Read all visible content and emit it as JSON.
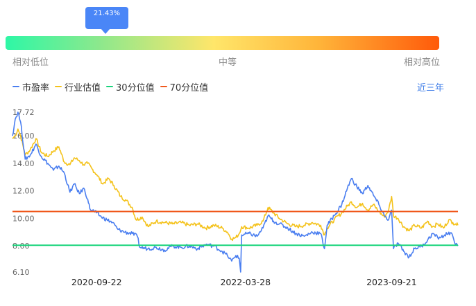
{
  "gauge": {
    "percentile_label": "21.43%",
    "percentile_value": 21.43,
    "labels": {
      "low": "相对低位",
      "mid": "中等",
      "high": "相对高位"
    }
  },
  "legend": {
    "items": [
      {
        "name": "市盈率",
        "color": "#4a7ef0"
      },
      {
        "name": "行业估值",
        "color": "#f4c21a"
      },
      {
        "name": "30分位值",
        "color": "#19d47b"
      },
      {
        "name": "70分位值",
        "color": "#f0581c"
      }
    ]
  },
  "range_selector": {
    "label": "近三年"
  },
  "chart_data": {
    "type": "line",
    "y_tick_labels": [
      "17.72",
      "16.00",
      "14.00",
      "12.00",
      "10.00",
      "8.00",
      "6.10"
    ],
    "y_ticks": [
      17.72,
      16.0,
      14.0,
      12.0,
      10.0,
      8.0,
      6.1
    ],
    "ylim": [
      6.1,
      17.72
    ],
    "x_tick_labels": [
      "2020-09-22",
      "2022-03-28",
      "2023-09-21"
    ],
    "x_range": [
      "2019-11-15",
      "2024-05-24"
    ],
    "reference_lines": [
      {
        "name": "30分位值",
        "value": 8.05,
        "color": "#19d47b"
      },
      {
        "name": "70分位值",
        "value": 10.5,
        "color": "#f0581c"
      }
    ],
    "series": [
      {
        "name": "市盈率",
        "color": "#4a7ef0",
        "points": [
          [
            "2019-11-15",
            16.0
          ],
          [
            "2019-11-25",
            17.2
          ],
          [
            "2019-12-05",
            17.72
          ],
          [
            "2019-12-15",
            17.0
          ],
          [
            "2020-01-01",
            14.3
          ],
          [
            "2020-01-20",
            14.6
          ],
          [
            "2020-02-10",
            15.4
          ],
          [
            "2020-03-01",
            14.5
          ],
          [
            "2020-03-25",
            14.0
          ],
          [
            "2020-04-15",
            13.5
          ],
          [
            "2020-05-05",
            13.8
          ],
          [
            "2020-05-25",
            13.3
          ],
          [
            "2020-06-15",
            11.9
          ],
          [
            "2020-07-01",
            12.5
          ],
          [
            "2020-07-20",
            11.8
          ],
          [
            "2020-08-05",
            12.2
          ],
          [
            "2020-08-20",
            11.4
          ],
          [
            "2020-08-28",
            10.7
          ],
          [
            "2020-09-22",
            10.4
          ],
          [
            "2020-10-10",
            10.1
          ],
          [
            "2020-10-30",
            9.9
          ],
          [
            "2020-11-20",
            9.7
          ],
          [
            "2020-12-10",
            9.2
          ],
          [
            "2021-01-05",
            9.0
          ],
          [
            "2021-02-01",
            8.9
          ],
          [
            "2021-02-20",
            8.7
          ],
          [
            "2021-03-01",
            7.9
          ],
          [
            "2021-04-01",
            7.8
          ],
          [
            "2021-05-01",
            7.9
          ],
          [
            "2021-06-01",
            7.7
          ],
          [
            "2021-07-01",
            8.0
          ],
          [
            "2021-08-01",
            7.9
          ],
          [
            "2021-09-01",
            8.0
          ],
          [
            "2021-10-01",
            7.8
          ],
          [
            "2021-11-01",
            8.1
          ],
          [
            "2021-12-01",
            8.0
          ],
          [
            "2022-01-01",
            7.6
          ],
          [
            "2022-01-20",
            7.3
          ],
          [
            "2022-02-05",
            6.9
          ],
          [
            "2022-02-20",
            7.3
          ],
          [
            "2022-03-05",
            7.1
          ],
          [
            "2022-03-10",
            6.1
          ],
          [
            "2022-03-14",
            8.8
          ],
          [
            "2022-04-10",
            8.9
          ],
          [
            "2022-05-10",
            8.7
          ],
          [
            "2022-06-01",
            9.3
          ],
          [
            "2022-06-20",
            10.2
          ],
          [
            "2022-07-10",
            9.8
          ],
          [
            "2022-08-01",
            9.6
          ],
          [
            "2022-09-01",
            9.3
          ],
          [
            "2022-10-01",
            8.9
          ],
          [
            "2022-11-01",
            8.7
          ],
          [
            "2022-12-01",
            9.0
          ],
          [
            "2023-01-01",
            8.9
          ],
          [
            "2023-01-15",
            7.8
          ],
          [
            "2023-01-25",
            9.5
          ],
          [
            "2023-02-20",
            10.2
          ],
          [
            "2023-03-20",
            11.0
          ],
          [
            "2023-04-10",
            12.2
          ],
          [
            "2023-04-25",
            12.9
          ],
          [
            "2023-05-15",
            12.3
          ],
          [
            "2023-06-05",
            11.8
          ],
          [
            "2023-06-25",
            12.4
          ],
          [
            "2023-07-15",
            11.7
          ],
          [
            "2023-08-05",
            11.0
          ],
          [
            "2023-08-25",
            10.2
          ],
          [
            "2023-09-10",
            9.9
          ],
          [
            "2023-09-21",
            10.6
          ],
          [
            "2023-09-28",
            7.8
          ],
          [
            "2023-10-15",
            8.2
          ],
          [
            "2023-11-05",
            7.6
          ],
          [
            "2023-11-25",
            7.2
          ],
          [
            "2023-12-15",
            7.8
          ],
          [
            "2024-01-10",
            8.0
          ],
          [
            "2024-02-01",
            8.4
          ],
          [
            "2024-02-20",
            8.9
          ],
          [
            "2024-03-10",
            8.6
          ],
          [
            "2024-04-01",
            8.7
          ],
          [
            "2024-04-20",
            9.0
          ],
          [
            "2024-05-05",
            8.7
          ],
          [
            "2024-05-15",
            8.1
          ],
          [
            "2024-05-24",
            8.0
          ]
        ]
      },
      {
        "name": "行业估值",
        "color": "#f4c21a",
        "points": [
          [
            "2019-11-15",
            15.8
          ],
          [
            "2019-11-25",
            16.0
          ],
          [
            "2019-12-05",
            16.5
          ],
          [
            "2019-12-15",
            16.0
          ],
          [
            "2020-01-01",
            14.6
          ],
          [
            "2020-01-20",
            15.0
          ],
          [
            "2020-02-10",
            15.8
          ],
          [
            "2020-03-01",
            14.8
          ],
          [
            "2020-03-25",
            14.5
          ],
          [
            "2020-04-15",
            14.9
          ],
          [
            "2020-05-05",
            15.2
          ],
          [
            "2020-05-25",
            14.1
          ],
          [
            "2020-06-15",
            13.9
          ],
          [
            "2020-07-01",
            14.4
          ],
          [
            "2020-07-20",
            14.2
          ],
          [
            "2020-08-05",
            13.9
          ],
          [
            "2020-08-20",
            14.0
          ],
          [
            "2020-09-05",
            13.6
          ],
          [
            "2020-09-22",
            13.2
          ],
          [
            "2020-10-15",
            12.5
          ],
          [
            "2020-11-05",
            12.9
          ],
          [
            "2020-11-25",
            12.4
          ],
          [
            "2020-12-20",
            11.6
          ],
          [
            "2021-01-10",
            11.3
          ],
          [
            "2021-02-01",
            10.8
          ],
          [
            "2021-02-15",
            9.9
          ],
          [
            "2021-03-10",
            10.1
          ],
          [
            "2021-04-01",
            9.4
          ],
          [
            "2021-05-01",
            9.8
          ],
          [
            "2021-06-01",
            9.7
          ],
          [
            "2021-07-01",
            9.6
          ],
          [
            "2021-08-01",
            9.7
          ],
          [
            "2021-09-01",
            9.5
          ],
          [
            "2021-10-01",
            9.6
          ],
          [
            "2021-11-01",
            9.3
          ],
          [
            "2021-12-01",
            9.5
          ],
          [
            "2022-01-01",
            9.3
          ],
          [
            "2022-01-20",
            9.0
          ],
          [
            "2022-02-05",
            8.5
          ],
          [
            "2022-02-20",
            8.6
          ],
          [
            "2022-03-05",
            8.9
          ],
          [
            "2022-03-14",
            9.4
          ],
          [
            "2022-04-10",
            9.3
          ],
          [
            "2022-05-10",
            9.5
          ],
          [
            "2022-06-01",
            9.8
          ],
          [
            "2022-06-20",
            10.8
          ],
          [
            "2022-07-10",
            10.4
          ],
          [
            "2022-08-01",
            10.0
          ],
          [
            "2022-09-01",
            9.6
          ],
          [
            "2022-10-01",
            9.4
          ],
          [
            "2022-11-01",
            9.5
          ],
          [
            "2022-12-01",
            9.7
          ],
          [
            "2023-01-01",
            9.5
          ],
          [
            "2023-01-15",
            8.8
          ],
          [
            "2023-01-25",
            9.3
          ],
          [
            "2023-02-20",
            9.9
          ],
          [
            "2023-03-20",
            10.4
          ],
          [
            "2023-04-10",
            10.9
          ],
          [
            "2023-04-25",
            11.2
          ],
          [
            "2023-05-15",
            10.8
          ],
          [
            "2023-06-05",
            11.1
          ],
          [
            "2023-06-25",
            10.6
          ],
          [
            "2023-07-15",
            11.0
          ],
          [
            "2023-08-05",
            10.5
          ],
          [
            "2023-08-25",
            10.1
          ],
          [
            "2023-09-10",
            10.6
          ],
          [
            "2023-09-21",
            11.6
          ],
          [
            "2023-09-28",
            10.2
          ],
          [
            "2023-10-15",
            10.0
          ],
          [
            "2023-11-05",
            9.4
          ],
          [
            "2023-11-25",
            9.1
          ],
          [
            "2023-12-15",
            9.5
          ],
          [
            "2024-01-10",
            9.3
          ],
          [
            "2024-02-01",
            9.8
          ],
          [
            "2024-02-20",
            9.4
          ],
          [
            "2024-03-10",
            9.6
          ],
          [
            "2024-04-01",
            9.3
          ],
          [
            "2024-04-20",
            9.9
          ],
          [
            "2024-05-05",
            9.7
          ],
          [
            "2024-05-15",
            9.6
          ],
          [
            "2024-05-24",
            9.5
          ]
        ]
      }
    ]
  }
}
